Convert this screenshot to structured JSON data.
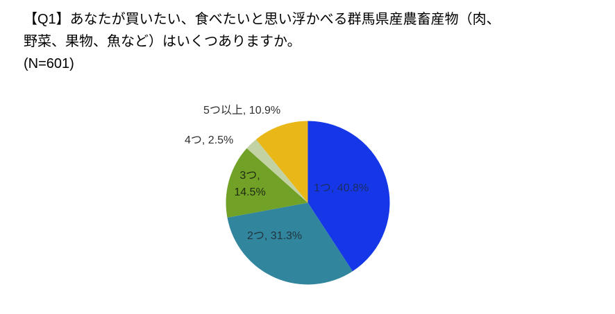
{
  "chart_data": {
    "type": "pie",
    "title": "【Q1】あなたが買いたい、食べたいと思い浮かべる群馬県産農畜産物（肉、野菜、果物、魚など）はいくつありますか。",
    "n_label": "(N=601)",
    "categories": [
      "1つ",
      "2つ",
      "3つ",
      "4つ",
      "5つ以上"
    ],
    "values": [
      40.8,
      31.3,
      14.5,
      2.5,
      10.9
    ],
    "unit": "%",
    "start_angle_deg": 0,
    "direction": "clockwise",
    "legend": "none",
    "slices": [
      {
        "name": "1つ",
        "value": 40.8,
        "label": "1つ, 40.8%",
        "color": "#1537e8",
        "label_placement": "inside"
      },
      {
        "name": "2つ",
        "value": 31.3,
        "label": "2つ, 31.3%",
        "color": "#31869e",
        "label_placement": "inside"
      },
      {
        "name": "3つ",
        "value": 14.5,
        "label": "3つ, 14.5%",
        "color": "#72a127",
        "label_placement": "inside"
      },
      {
        "name": "4つ",
        "value": 2.5,
        "label": "4つ, 2.5%",
        "color": "#c3d2a3",
        "label_placement": "outside"
      },
      {
        "name": "5つ以上",
        "value": 10.9,
        "label": "5つ以上, 10.9%",
        "color": "#e9b718",
        "label_placement": "outside"
      }
    ]
  }
}
